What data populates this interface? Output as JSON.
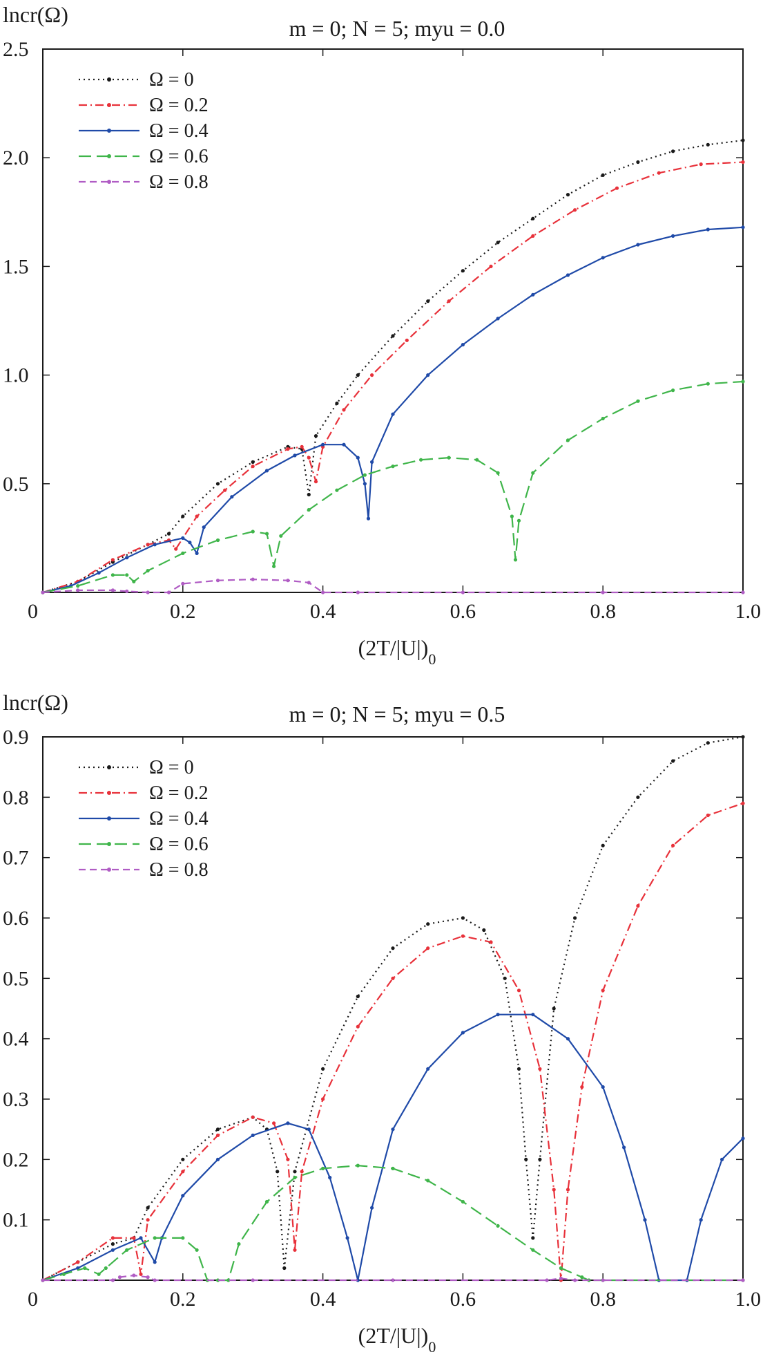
{
  "chart_data": [
    {
      "type": "line",
      "title": "m = 0; N = 5; myu = 0.0",
      "xlabel": "(2T/|U|)0",
      "ylabel": "lncr(Ω)",
      "xlim": [
        0,
        1.0
      ],
      "ylim": [
        0,
        2.5
      ],
      "xticks": [
        0,
        0.2,
        0.4,
        0.6,
        0.8,
        1.0
      ],
      "xtick_labels": [
        "0",
        "0.2",
        "0.4",
        "0.6",
        "0.8",
        "1.0"
      ],
      "yticks": [
        0.5,
        1.0,
        1.5,
        2.0,
        2.5
      ],
      "ytick_labels": [
        "0.5",
        "1.0",
        "1.5",
        "2.0",
        "2.5"
      ],
      "legend_position": "top-left",
      "series": [
        {
          "name": "Ω = 0",
          "color": "#1a1a1a",
          "dash": "dotted",
          "x": [
            0.0,
            0.05,
            0.1,
            0.15,
            0.18,
            0.2,
            0.25,
            0.3,
            0.35,
            0.37,
            0.38,
            0.39,
            0.42,
            0.45,
            0.5,
            0.55,
            0.6,
            0.65,
            0.7,
            0.75,
            0.8,
            0.85,
            0.9,
            0.95,
            1.0
          ],
          "y": [
            0.0,
            0.05,
            0.14,
            0.22,
            0.27,
            0.35,
            0.5,
            0.6,
            0.67,
            0.66,
            0.45,
            0.72,
            0.87,
            1.0,
            1.18,
            1.34,
            1.48,
            1.61,
            1.72,
            1.83,
            1.92,
            1.98,
            2.03,
            2.06,
            2.08
          ]
        },
        {
          "name": "Ω = 0.2",
          "color": "#e8313a",
          "dash": "dash-dot",
          "x": [
            0.0,
            0.05,
            0.1,
            0.15,
            0.18,
            0.19,
            0.22,
            0.26,
            0.3,
            0.35,
            0.37,
            0.38,
            0.39,
            0.4,
            0.43,
            0.47,
            0.52,
            0.58,
            0.64,
            0.7,
            0.76,
            0.82,
            0.88,
            0.94,
            1.0
          ],
          "y": [
            0.0,
            0.05,
            0.15,
            0.22,
            0.24,
            0.2,
            0.35,
            0.47,
            0.58,
            0.66,
            0.67,
            0.62,
            0.51,
            0.67,
            0.84,
            1.0,
            1.16,
            1.34,
            1.5,
            1.64,
            1.76,
            1.86,
            1.93,
            1.97,
            1.98
          ]
        },
        {
          "name": "Ω = 0.4",
          "color": "#1f4aa8",
          "dash": "solid",
          "x": [
            0.0,
            0.04,
            0.08,
            0.12,
            0.16,
            0.2,
            0.21,
            0.22,
            0.23,
            0.27,
            0.32,
            0.36,
            0.4,
            0.43,
            0.45,
            0.46,
            0.465,
            0.47,
            0.5,
            0.55,
            0.6,
            0.65,
            0.7,
            0.75,
            0.8,
            0.85,
            0.9,
            0.95,
            1.0
          ],
          "y": [
            0.0,
            0.03,
            0.09,
            0.16,
            0.22,
            0.25,
            0.23,
            0.18,
            0.3,
            0.44,
            0.56,
            0.63,
            0.68,
            0.68,
            0.62,
            0.5,
            0.34,
            0.6,
            0.82,
            1.0,
            1.14,
            1.26,
            1.37,
            1.46,
            1.54,
            1.6,
            1.64,
            1.67,
            1.68
          ]
        },
        {
          "name": "Ω = 0.6",
          "color": "#3fb54a",
          "dash": "long-dash",
          "x": [
            0.0,
            0.05,
            0.1,
            0.12,
            0.13,
            0.15,
            0.2,
            0.25,
            0.3,
            0.32,
            0.33,
            0.34,
            0.38,
            0.42,
            0.46,
            0.5,
            0.54,
            0.58,
            0.62,
            0.65,
            0.67,
            0.675,
            0.68,
            0.7,
            0.75,
            0.8,
            0.85,
            0.9,
            0.95,
            1.0
          ],
          "y": [
            0.0,
            0.03,
            0.08,
            0.08,
            0.05,
            0.1,
            0.18,
            0.24,
            0.28,
            0.27,
            0.12,
            0.26,
            0.38,
            0.47,
            0.54,
            0.58,
            0.61,
            0.62,
            0.61,
            0.55,
            0.35,
            0.15,
            0.33,
            0.55,
            0.7,
            0.8,
            0.88,
            0.93,
            0.96,
            0.97
          ]
        },
        {
          "name": "Ω = 0.8",
          "color": "#b05cc4",
          "dash": "dashed",
          "x": [
            0.0,
            0.05,
            0.1,
            0.12,
            0.15,
            0.18,
            0.2,
            0.25,
            0.3,
            0.35,
            0.38,
            0.4,
            0.45,
            0.6,
            0.8,
            1.0
          ],
          "y": [
            0.0,
            0.01,
            0.01,
            0.005,
            0.0,
            0.0,
            0.04,
            0.055,
            0.06,
            0.055,
            0.045,
            0.0,
            0.0,
            0.0,
            0.0,
            0.0
          ]
        }
      ]
    },
    {
      "type": "line",
      "title": "m = 0; N = 5; myu = 0.5",
      "xlabel": "(2T/|U|)0",
      "ylabel": "lncr(Ω)",
      "xlim": [
        0,
        1.0
      ],
      "ylim": [
        0,
        0.9
      ],
      "xticks": [
        0,
        0.2,
        0.4,
        0.6,
        0.8,
        1.0
      ],
      "xtick_labels": [
        "0",
        "0.2",
        "0.4",
        "0.6",
        "0.8",
        "1.0"
      ],
      "yticks": [
        0.1,
        0.2,
        0.3,
        0.4,
        0.5,
        0.6,
        0.7,
        0.8,
        0.9
      ],
      "ytick_labels": [
        "0.1",
        "0.2",
        "0.3",
        "0.4",
        "0.5",
        "0.6",
        "0.7",
        "0.8",
        "0.9"
      ],
      "legend_position": "top-left",
      "series": [
        {
          "name": "Ω = 0",
          "color": "#1a1a1a",
          "dash": "dotted",
          "x": [
            0.0,
            0.05,
            0.1,
            0.13,
            0.15,
            0.2,
            0.25,
            0.3,
            0.32,
            0.335,
            0.345,
            0.36,
            0.4,
            0.45,
            0.5,
            0.55,
            0.6,
            0.63,
            0.66,
            0.68,
            0.69,
            0.7,
            0.71,
            0.73,
            0.76,
            0.8,
            0.85,
            0.9,
            0.95,
            1.0
          ],
          "y": [
            0.0,
            0.03,
            0.06,
            0.07,
            0.12,
            0.2,
            0.25,
            0.27,
            0.25,
            0.18,
            0.02,
            0.18,
            0.35,
            0.47,
            0.55,
            0.59,
            0.6,
            0.58,
            0.5,
            0.35,
            0.2,
            0.07,
            0.2,
            0.45,
            0.6,
            0.72,
            0.8,
            0.86,
            0.89,
            0.9
          ]
        },
        {
          "name": "Ω = 0.2",
          "color": "#e8313a",
          "dash": "dash-dot",
          "x": [
            0.0,
            0.05,
            0.1,
            0.13,
            0.14,
            0.15,
            0.2,
            0.25,
            0.3,
            0.33,
            0.35,
            0.36,
            0.37,
            0.4,
            0.45,
            0.5,
            0.55,
            0.6,
            0.64,
            0.68,
            0.71,
            0.73,
            0.74,
            0.75,
            0.77,
            0.8,
            0.85,
            0.9,
            0.95,
            1.0
          ],
          "y": [
            0.0,
            0.03,
            0.07,
            0.07,
            0.01,
            0.1,
            0.18,
            0.24,
            0.27,
            0.26,
            0.2,
            0.05,
            0.18,
            0.3,
            0.42,
            0.5,
            0.55,
            0.57,
            0.56,
            0.48,
            0.35,
            0.15,
            0.0,
            0.15,
            0.32,
            0.48,
            0.62,
            0.72,
            0.77,
            0.79
          ]
        },
        {
          "name": "Ω = 0.4",
          "color": "#1f4aa8",
          "dash": "solid",
          "x": [
            0.0,
            0.05,
            0.1,
            0.14,
            0.16,
            0.17,
            0.2,
            0.25,
            0.3,
            0.35,
            0.38,
            0.41,
            0.435,
            0.45,
            0.47,
            0.5,
            0.55,
            0.6,
            0.65,
            0.7,
            0.75,
            0.8,
            0.83,
            0.86,
            0.88,
            0.92,
            0.94,
            0.97,
            1.0
          ],
          "y": [
            0.0,
            0.02,
            0.05,
            0.07,
            0.03,
            0.07,
            0.14,
            0.2,
            0.24,
            0.26,
            0.25,
            0.17,
            0.07,
            0.0,
            0.12,
            0.25,
            0.35,
            0.41,
            0.44,
            0.44,
            0.4,
            0.32,
            0.22,
            0.1,
            0.0,
            0.0,
            0.1,
            0.2,
            0.235
          ]
        },
        {
          "name": "Ω = 0.6",
          "color": "#3fb54a",
          "dash": "long-dash",
          "x": [
            0.0,
            0.03,
            0.06,
            0.08,
            0.09,
            0.12,
            0.16,
            0.2,
            0.22,
            0.235,
            0.25,
            0.265,
            0.28,
            0.32,
            0.36,
            0.4,
            0.45,
            0.5,
            0.55,
            0.6,
            0.65,
            0.7,
            0.74,
            0.77,
            0.78,
            0.8,
            1.0
          ],
          "y": [
            0.0,
            0.01,
            0.02,
            0.01,
            0.02,
            0.05,
            0.07,
            0.07,
            0.05,
            0.0,
            0.0,
            0.0,
            0.06,
            0.13,
            0.17,
            0.185,
            0.19,
            0.185,
            0.165,
            0.13,
            0.09,
            0.05,
            0.02,
            0.005,
            0.0,
            0.0,
            0.0
          ]
        },
        {
          "name": "Ω = 0.8",
          "color": "#b05cc4",
          "dash": "dashed",
          "x": [
            0.0,
            0.1,
            0.11,
            0.13,
            0.15,
            0.16,
            0.3,
            0.5,
            0.72,
            0.74,
            0.76,
            0.8,
            1.0
          ],
          "y": [
            0.0,
            0.0,
            0.005,
            0.008,
            0.005,
            0.0,
            0.0,
            0.0,
            0.0,
            0.003,
            0.0,
            0.0,
            0.0
          ]
        }
      ]
    }
  ]
}
